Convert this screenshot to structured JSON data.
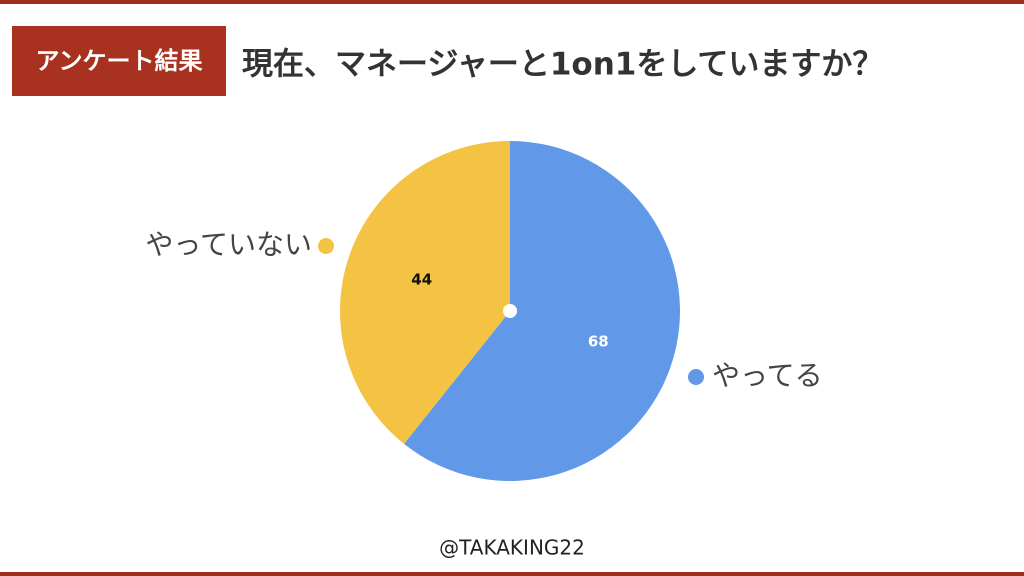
{
  "chart_data": {
    "type": "pie",
    "badge": "アンケート結果",
    "title": "現在、マネージャーと1on1をしていますか？",
    "credit": "@TAKAKING22",
    "categories": [
      "やってる",
      "やっていない"
    ],
    "series": [
      {
        "values": [
          68,
          44
        ],
        "colors": [
          "#6199e8",
          "#f4c343"
        ]
      }
    ]
  }
}
